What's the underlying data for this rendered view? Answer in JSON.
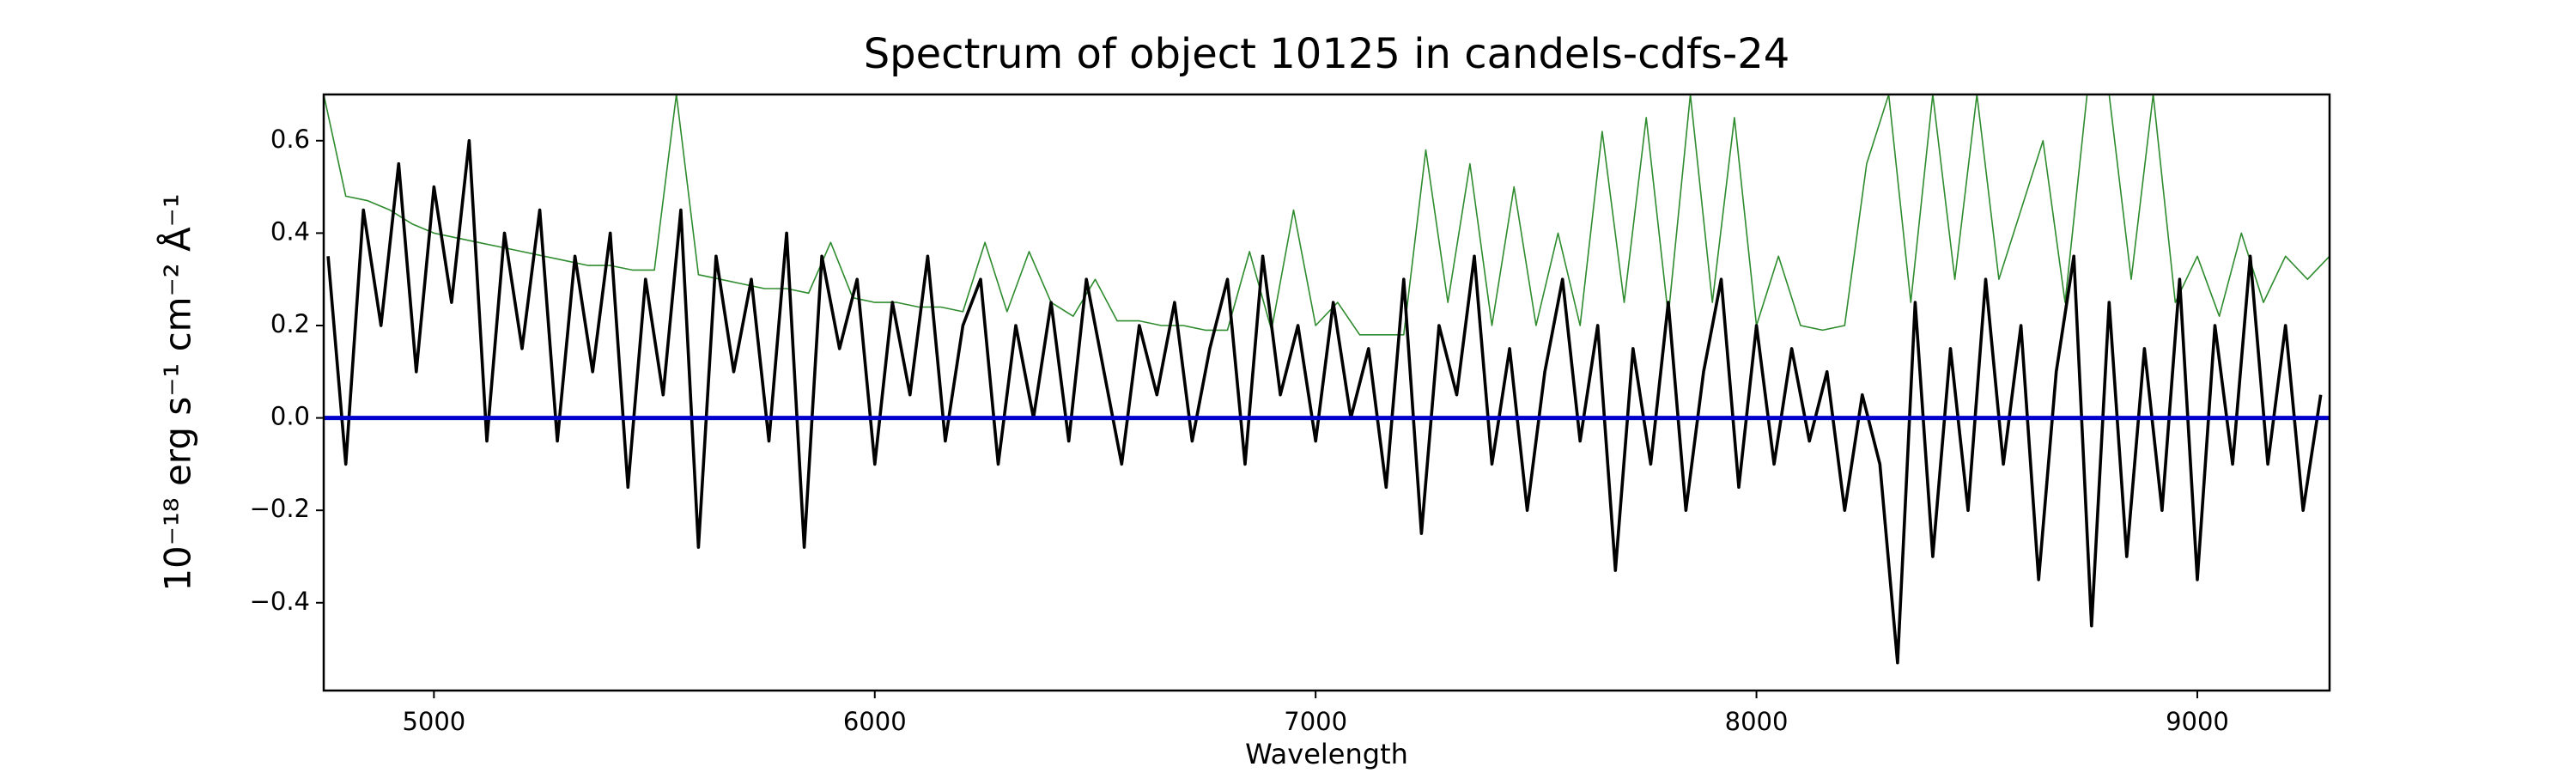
{
  "chart_data": {
    "type": "line",
    "title": "Spectrum of object 10125 in candels-cdfs-24",
    "x_label": "Wavelength",
    "y_label": "10⁻¹⁸ erg s⁻¹ cm⁻² Å⁻¹",
    "xlim": [
      4750,
      9300
    ],
    "ylim": [
      -0.59,
      0.7
    ],
    "xticks": [
      5000,
      6000,
      7000,
      8000,
      9000
    ],
    "yticks": [
      {
        "value": -0.4,
        "label": "−0.4"
      },
      {
        "value": -0.2,
        "label": "−0.2"
      },
      {
        "value": 0,
        "label": "0.0"
      },
      0.2,
      0.4,
      0.6
    ],
    "series": [
      {
        "color": "#2e8b2e",
        "width": 1.6,
        "x": [
          4750,
          4800,
          4850,
          4900,
          4950,
          5000,
          5050,
          5100,
          5150,
          5200,
          5250,
          5300,
          5350,
          5400,
          5450,
          5500,
          5550,
          5600,
          5650,
          5700,
          5750,
          5800,
          5850,
          5900,
          5950,
          6000,
          6050,
          6100,
          6150,
          6200,
          6250,
          6300,
          6350,
          6400,
          6450,
          6500,
          6550,
          6600,
          6650,
          6700,
          6750,
          6800,
          6850,
          6900,
          6950,
          7000,
          7050,
          7100,
          7150,
          7200,
          7250,
          7300,
          7350,
          7400,
          7450,
          7500,
          7550,
          7600,
          7650,
          7700,
          7750,
          7800,
          7850,
          7900,
          7950,
          8000,
          8050,
          8100,
          8150,
          8200,
          8250,
          8300,
          8350,
          8400,
          8450,
          8500,
          8550,
          8600,
          8650,
          8700,
          8750,
          8800,
          8850,
          8900,
          8950,
          9000,
          9050,
          9100,
          9150,
          9200,
          9250,
          9300
        ],
        "values": [
          0.7,
          0.48,
          0.47,
          0.45,
          0.42,
          0.4,
          0.39,
          0.38,
          0.37,
          0.36,
          0.35,
          0.34,
          0.33,
          0.33,
          0.32,
          0.32,
          0.7,
          0.31,
          0.3,
          0.29,
          0.28,
          0.28,
          0.27,
          0.38,
          0.26,
          0.25,
          0.25,
          0.24,
          0.24,
          0.23,
          0.38,
          0.23,
          0.36,
          0.25,
          0.22,
          0.3,
          0.21,
          0.21,
          0.2,
          0.2,
          0.19,
          0.19,
          0.36,
          0.19,
          0.45,
          0.2,
          0.25,
          0.18,
          0.18,
          0.18,
          0.58,
          0.25,
          0.55,
          0.2,
          0.5,
          0.2,
          0.4,
          0.2,
          0.62,
          0.25,
          0.65,
          0.22,
          0.7,
          0.25,
          0.65,
          0.2,
          0.35,
          0.2,
          0.19,
          0.2,
          0.55,
          0.7,
          0.25,
          0.7,
          0.3,
          0.7,
          0.3,
          0.45,
          0.6,
          0.25,
          0.7,
          0.7,
          0.3,
          0.7,
          0.25,
          0.35,
          0.22,
          0.4,
          0.25,
          0.35,
          0.3,
          0.35
        ]
      },
      {
        "color": "#000000",
        "width": 3.6,
        "x": [
          4760,
          4800,
          4840,
          4880,
          4920,
          4960,
          5000,
          5040,
          5080,
          5120,
          5160,
          5200,
          5240,
          5280,
          5320,
          5360,
          5400,
          5440,
          5480,
          5520,
          5560,
          5600,
          5640,
          5680,
          5720,
          5760,
          5800,
          5840,
          5880,
          5920,
          5960,
          6000,
          6040,
          6080,
          6120,
          6160,
          6200,
          6240,
          6280,
          6320,
          6360,
          6400,
          6440,
          6480,
          6520,
          6560,
          6600,
          6640,
          6680,
          6720,
          6760,
          6800,
          6840,
          6880,
          6920,
          6960,
          7000,
          7040,
          7080,
          7120,
          7160,
          7200,
          7240,
          7280,
          7320,
          7360,
          7400,
          7440,
          7480,
          7520,
          7560,
          7600,
          7640,
          7680,
          7720,
          7760,
          7800,
          7840,
          7880,
          7920,
          7960,
          8000,
          8040,
          8080,
          8120,
          8160,
          8200,
          8240,
          8280,
          8320,
          8360,
          8400,
          8440,
          8480,
          8520,
          8560,
          8600,
          8640,
          8680,
          8720,
          8760,
          8800,
          8840,
          8880,
          8920,
          8960,
          9000,
          9040,
          9080,
          9120,
          9160,
          9200,
          9240,
          9280
        ],
        "values": [
          0.35,
          -0.1,
          0.45,
          0.2,
          0.55,
          0.1,
          0.5,
          0.25,
          0.6,
          -0.05,
          0.4,
          0.15,
          0.45,
          -0.05,
          0.35,
          0.1,
          0.4,
          -0.15,
          0.3,
          0.05,
          0.45,
          -0.28,
          0.35,
          0.1,
          0.3,
          -0.05,
          0.4,
          -0.28,
          0.35,
          0.15,
          0.3,
          -0.1,
          0.25,
          0.05,
          0.35,
          -0.05,
          0.2,
          0.3,
          -0.1,
          0.2,
          0.0,
          0.25,
          -0.05,
          0.3,
          0.1,
          -0.1,
          0.2,
          0.05,
          0.25,
          -0.05,
          0.15,
          0.3,
          -0.1,
          0.35,
          0.05,
          0.2,
          -0.05,
          0.25,
          0.0,
          0.15,
          -0.15,
          0.3,
          -0.25,
          0.2,
          0.05,
          0.35,
          -0.1,
          0.15,
          -0.2,
          0.1,
          0.3,
          -0.05,
          0.2,
          -0.33,
          0.15,
          -0.1,
          0.25,
          -0.2,
          0.1,
          0.3,
          -0.15,
          0.2,
          -0.1,
          0.15,
          -0.05,
          0.1,
          -0.2,
          0.05,
          -0.1,
          -0.53,
          0.25,
          -0.3,
          0.15,
          -0.2,
          0.3,
          -0.1,
          0.2,
          -0.35,
          0.1,
          0.35,
          -0.45,
          0.25,
          -0.3,
          0.15,
          -0.2,
          0.3,
          -0.35,
          0.2,
          -0.1,
          0.35,
          -0.1,
          0.2,
          -0.2,
          0.05
        ]
      },
      {
        "color": "#0000cc",
        "width": 5,
        "x": [
          4750,
          9300
        ],
        "values": [
          0,
          0
        ]
      }
    ]
  }
}
